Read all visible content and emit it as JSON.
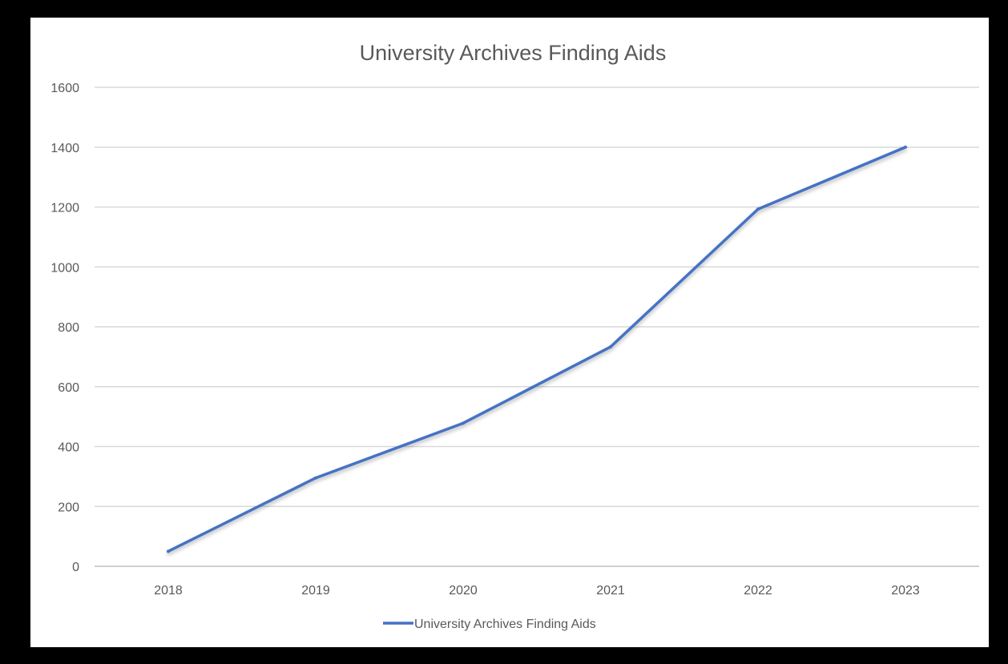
{
  "chart_data": {
    "type": "line",
    "title": "University Archives Finding Aids",
    "xlabel": "",
    "ylabel": "",
    "categories": [
      "2018",
      "2019",
      "2020",
      "2021",
      "2022",
      "2023"
    ],
    "series": [
      {
        "name": "University Archives Finding Aids",
        "values": [
          50,
          295,
          478,
          733,
          1193,
          1400
        ],
        "color": "#4472c4"
      }
    ],
    "ylim": [
      0,
      1600
    ],
    "yticks": [
      "0",
      "200",
      "400",
      "600",
      "800",
      "1000",
      "1200",
      "1400",
      "1600"
    ],
    "grid": true,
    "legend": "bottom"
  }
}
